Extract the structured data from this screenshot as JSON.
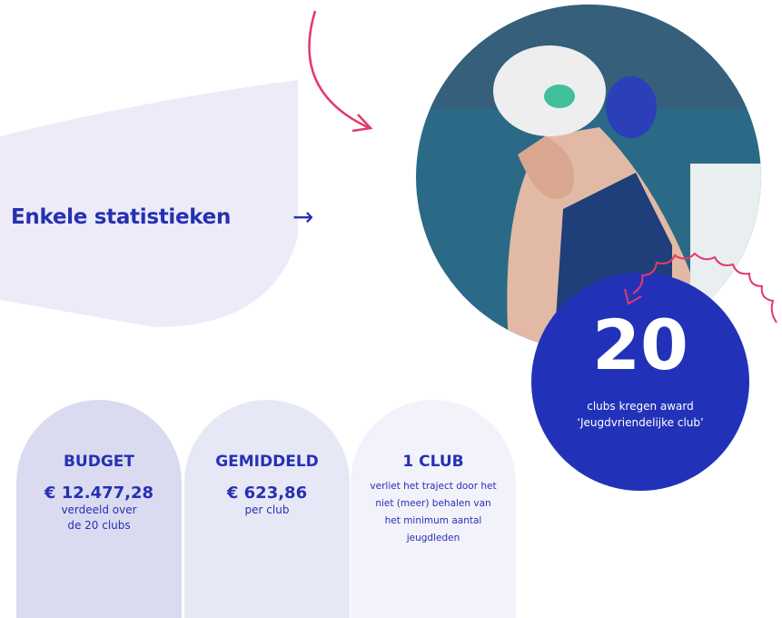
{
  "heading": "Enkele statistieken",
  "highlight": {
    "number": "20",
    "line1": "clubs kregen award",
    "line2": "‘Jeugdvriendelijke club’"
  },
  "cards": [
    {
      "title": "BUDGET",
      "value": "€ 12.477,28",
      "lines": [
        "verdeeld over",
        "de 20 clubs"
      ]
    },
    {
      "title": "GEMIDDELD",
      "value": "€ 623,86",
      "lines": [
        "per club"
      ]
    },
    {
      "title": "1 CLUB",
      "lines": [
        "verliet het traject door het",
        "niet (meer) behalen van",
        "het minimum aantal",
        "jeugdleden"
      ]
    }
  ]
}
